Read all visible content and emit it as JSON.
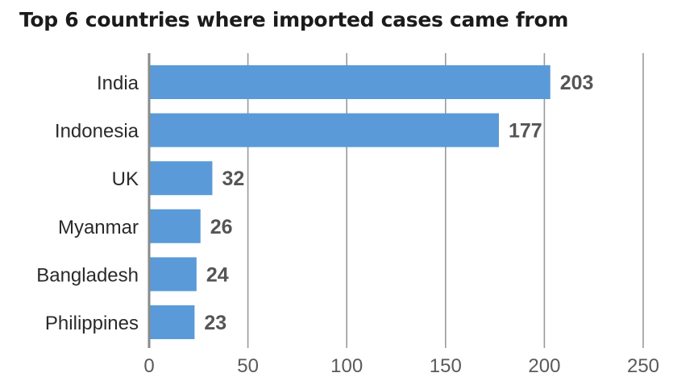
{
  "title": "Top 6 countries where imported cases came from",
  "colors": {
    "bar": "#5a9ad8",
    "grid": "#9a9a9a",
    "axis": "#8a8a8a"
  },
  "chart_data": {
    "type": "bar",
    "orientation": "horizontal",
    "title": "Top 6 countries where imported cases came from",
    "categories": [
      "India",
      "Indonesia",
      "UK",
      "Myanmar",
      "Bangladesh",
      "Philippines"
    ],
    "values": [
      203,
      177,
      32,
      26,
      24,
      23
    ],
    "xlim": [
      0,
      250
    ],
    "xticks": [
      0,
      50,
      100,
      150,
      200,
      250
    ],
    "xlabel": "",
    "ylabel": "",
    "grid": "vertical",
    "legend": "none"
  }
}
